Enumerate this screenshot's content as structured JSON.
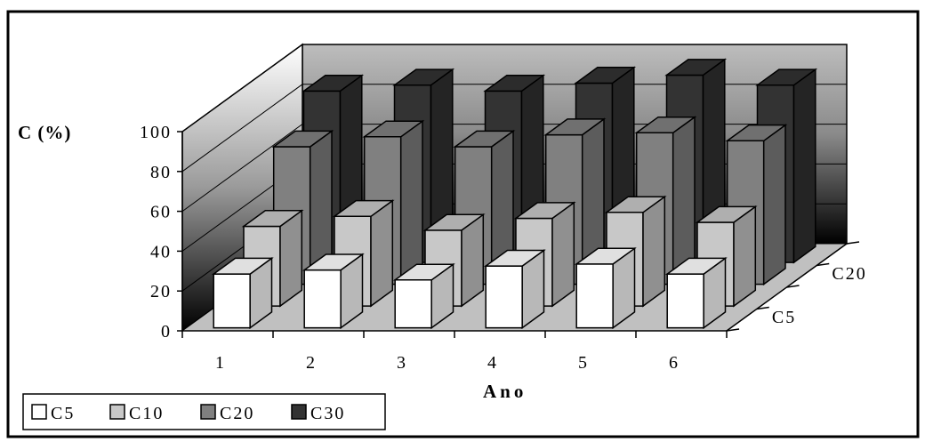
{
  "chart_data": {
    "type": "bar",
    "style": "3d-clustered-depth",
    "ylabel": "C  (%)",
    "xlabel": "Ano",
    "categories": [
      "1",
      "2",
      "3",
      "4",
      "5",
      "6"
    ],
    "ylim": [
      0,
      100
    ],
    "yticks": [
      "0",
      "20",
      "40",
      "60",
      "80",
      "100"
    ],
    "depth_labels": [
      "C5",
      "C20"
    ],
    "legend_position": "bottom-left",
    "series": [
      {
        "name": "C5",
        "color": "#ffffff",
        "values": [
          27,
          29,
          24,
          31,
          32,
          27
        ]
      },
      {
        "name": "C10",
        "color": "#c8c8c8",
        "values": [
          40,
          45,
          38,
          44,
          47,
          42
        ]
      },
      {
        "name": "C20",
        "color": "#808080",
        "values": [
          69,
          74,
          69,
          75,
          76,
          72
        ]
      },
      {
        "name": "C30",
        "color": "#333333",
        "values": [
          86,
          89,
          86,
          90,
          94,
          89
        ]
      }
    ]
  }
}
